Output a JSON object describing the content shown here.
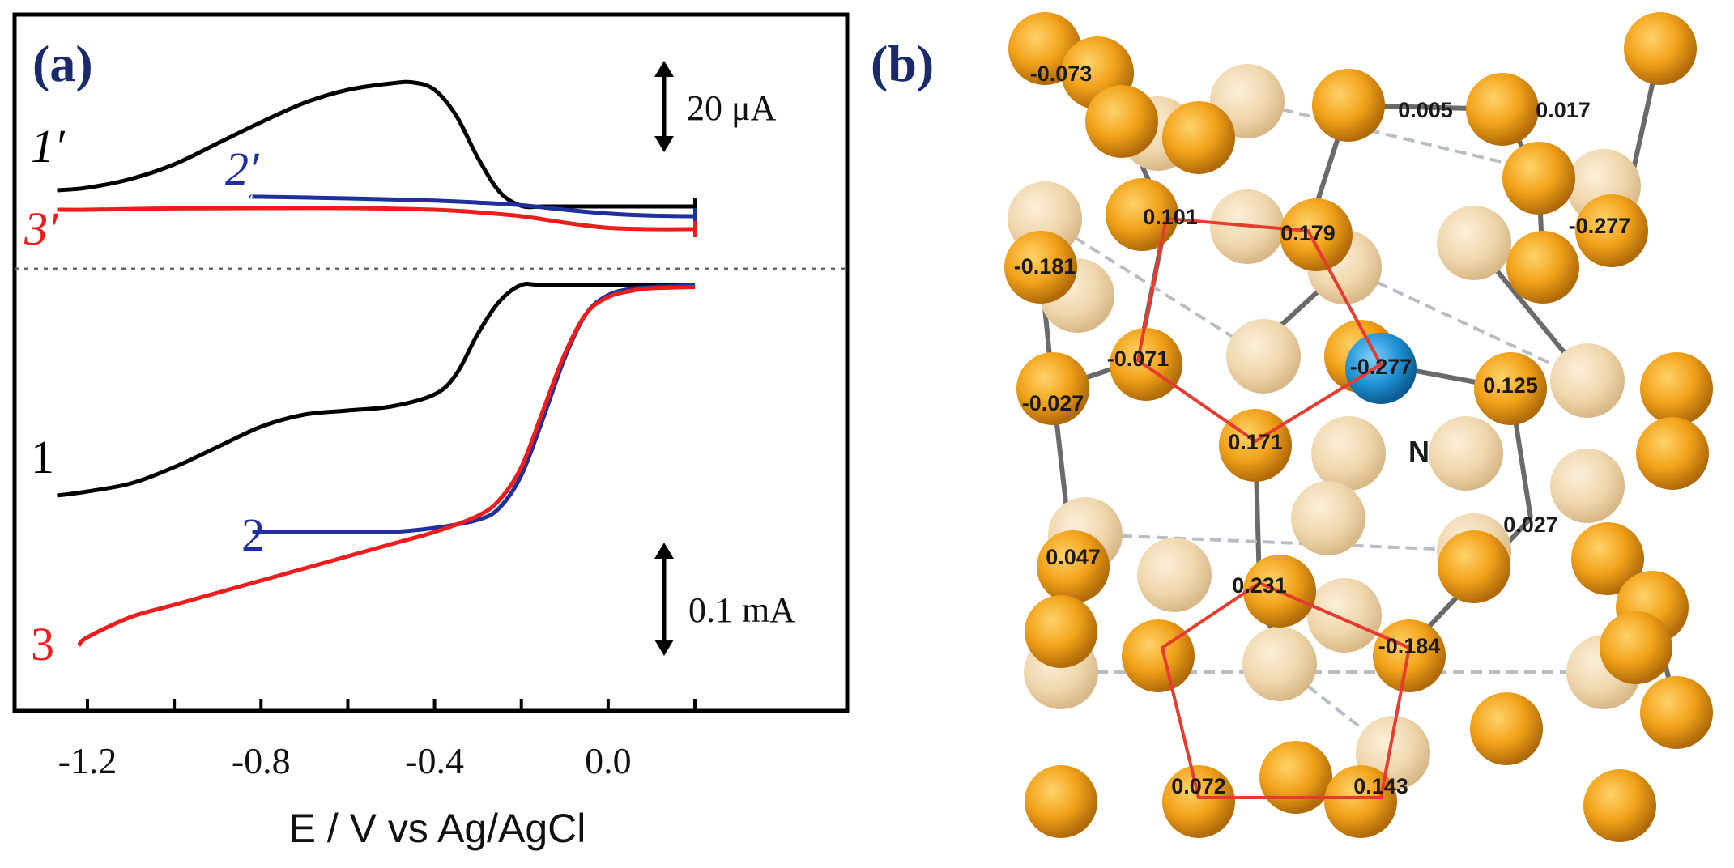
{
  "chart_data": [
    {
      "type": "line",
      "panel_label": "(a)",
      "xlabel": "E / V vs Ag/AgCl",
      "ylabel": "",
      "xlim": [
        -1.3,
        0.3
      ],
      "x_ticks": [
        -1.2,
        -1.0,
        -0.8,
        -0.6,
        -0.4,
        -0.2,
        0.0,
        0.2
      ],
      "x_tick_labels": [
        "-1.2",
        "-0.8",
        "-0.4",
        "0.0"
      ],
      "grid": false,
      "scale_bars": [
        {
          "label": "20 μA",
          "section": "upper"
        },
        {
          "label": "0.1 mA",
          "section": "lower"
        }
      ],
      "separator": "dotted",
      "colors": {
        "black": "#000000",
        "blue": "#1e2f9e",
        "red": "#ef1c1c"
      },
      "series": [
        {
          "name": "1′",
          "color": "#000000",
          "section": "upper",
          "x": [
            -1.27,
            -1.2,
            -1.1,
            -1.0,
            -0.9,
            -0.8,
            -0.7,
            -0.6,
            -0.5,
            -0.45,
            -0.4,
            -0.35,
            -0.3,
            -0.25,
            -0.2,
            -0.15,
            -0.1,
            0.0,
            0.1,
            0.2
          ],
          "y": [
            2.0,
            2.8,
            5.5,
            10.0,
            16.5,
            23.0,
            29.0,
            33.0,
            35.0,
            35.3,
            33.0,
            25.0,
            12.0,
            1.5,
            -2.8,
            -3.0,
            -3.0,
            -3.0,
            -3.0,
            -3.0
          ]
        },
        {
          "name": "2′",
          "color": "#1e2f9e",
          "section": "upper",
          "x": [
            -0.82,
            -0.8,
            -0.6,
            -0.4,
            -0.3,
            -0.2,
            -0.1,
            0.0,
            0.1,
            0.2
          ],
          "y": [
            0.0,
            0.0,
            -0.5,
            -1.2,
            -1.8,
            -2.6,
            -4.0,
            -5.2,
            -5.8,
            -6.0
          ]
        },
        {
          "name": "3′",
          "color": "#ef1c1c",
          "section": "upper",
          "x": [
            -1.27,
            -1.2,
            -1.0,
            -0.8,
            -0.6,
            -0.4,
            -0.3,
            -0.2,
            -0.1,
            0.0,
            0.1,
            0.2
          ],
          "y": [
            -4.0,
            -4.0,
            -3.6,
            -3.5,
            -3.5,
            -4.0,
            -4.8,
            -6.0,
            -8.0,
            -9.6,
            -10.0,
            -10.0
          ]
        },
        {
          "name": "1",
          "color": "#000000",
          "section": "lower",
          "x": [
            -1.27,
            -1.2,
            -1.1,
            -1.0,
            -0.9,
            -0.8,
            -0.7,
            -0.6,
            -0.5,
            -0.4,
            -0.35,
            -0.3,
            -0.25,
            -0.2,
            -0.15,
            0.0,
            0.2
          ],
          "y": [
            -0.52,
            -0.51,
            -0.49,
            -0.45,
            -0.4,
            -0.35,
            -0.32,
            -0.31,
            -0.3,
            -0.27,
            -0.22,
            -0.12,
            -0.04,
            0.0,
            0.0,
            0.0,
            0.0
          ]
        },
        {
          "name": "2",
          "color": "#1e2f9e",
          "section": "lower",
          "x": [
            -0.82,
            -0.8,
            -0.7,
            -0.6,
            -0.5,
            -0.4,
            -0.3,
            -0.25,
            -0.2,
            -0.15,
            -0.1,
            -0.05,
            0.0,
            0.05,
            0.1,
            0.2
          ],
          "y": [
            -0.61,
            -0.61,
            -0.61,
            -0.61,
            -0.61,
            -0.6,
            -0.58,
            -0.55,
            -0.47,
            -0.33,
            -0.18,
            -0.07,
            -0.025,
            -0.01,
            -0.005,
            0.0
          ]
        },
        {
          "name": "3",
          "color": "#ef1c1c",
          "section": "lower",
          "x": [
            -1.22,
            -1.2,
            -1.1,
            -1.0,
            -0.9,
            -0.8,
            -0.7,
            -0.6,
            -0.5,
            -0.4,
            -0.3,
            -0.25,
            -0.2,
            -0.15,
            -0.1,
            -0.05,
            0.0,
            0.05,
            0.1,
            0.2
          ],
          "y": [
            -0.89,
            -0.87,
            -0.82,
            -0.79,
            -0.76,
            -0.73,
            -0.7,
            -0.67,
            -0.64,
            -0.61,
            -0.57,
            -0.53,
            -0.45,
            -0.31,
            -0.17,
            -0.07,
            -0.03,
            -0.015,
            -0.008,
            -0.005
          ]
        }
      ]
    },
    {
      "type": "other",
      "panel_label": "(b)",
      "description_free": true,
      "atom_charges": [
        "-0.073",
        "0.005",
        "0.017",
        "0.101",
        "0.179",
        "-0.277",
        "-0.181",
        "-0.071",
        "-0.277",
        "0.125",
        "-0.027",
        "0.171",
        "0.047",
        "0.027",
        "0.231",
        "-0.184",
        "0.072",
        "0.143"
      ],
      "n_label": "N",
      "colors": {
        "carbon_front": "#f2a21a",
        "carbon_back": "#f0d7ae",
        "nitrogen": "#1e8fd2",
        "ring": "#e63b2e",
        "bond": "#555555"
      }
    }
  ]
}
